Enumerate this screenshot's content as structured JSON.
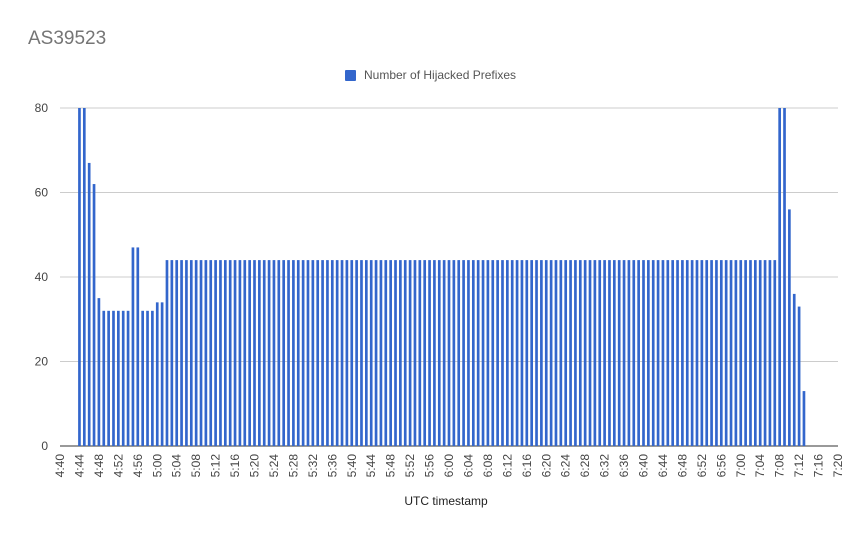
{
  "chart_data": {
    "type": "bar",
    "title": "AS39523",
    "xlabel": "UTC timestamp",
    "ylabel": "",
    "ylim": [
      0,
      80
    ],
    "yticks": [
      0,
      20,
      40,
      60,
      80
    ],
    "xlim": [
      "4:40",
      "7:20"
    ],
    "xticks": [
      "4:40",
      "4:44",
      "4:48",
      "4:52",
      "4:56",
      "5:00",
      "5:04",
      "5:08",
      "5:12",
      "5:16",
      "5:20",
      "5:24",
      "5:28",
      "5:32",
      "5:36",
      "5:40",
      "5:44",
      "5:48",
      "5:52",
      "5:56",
      "6:00",
      "6:04",
      "6:08",
      "6:12",
      "6:16",
      "6:20",
      "6:24",
      "6:28",
      "6:32",
      "6:36",
      "6:40",
      "6:44",
      "6:48",
      "6:52",
      "6:56",
      "7:00",
      "7:04",
      "7:08",
      "7:12",
      "7:16",
      "7:20"
    ],
    "grid": true,
    "legend_position": "top",
    "series": [
      {
        "name": "Number of Hijacked Prefixes",
        "color": "#3366cc",
        "start_time": "4:44",
        "interval_minutes": 1,
        "values": [
          80,
          80,
          67,
          62,
          35,
          32,
          32,
          32,
          32,
          32,
          32,
          47,
          47,
          32,
          32,
          32,
          34,
          34,
          44,
          44,
          44,
          44,
          44,
          44,
          44,
          44,
          44,
          44,
          44,
          44,
          44,
          44,
          44,
          44,
          44,
          44,
          44,
          44,
          44,
          44,
          44,
          44,
          44,
          44,
          44,
          44,
          44,
          44,
          44,
          44,
          44,
          44,
          44,
          44,
          44,
          44,
          44,
          44,
          44,
          44,
          44,
          44,
          44,
          44,
          44,
          44,
          44,
          44,
          44,
          44,
          44,
          44,
          44,
          44,
          44,
          44,
          44,
          44,
          44,
          44,
          44,
          44,
          44,
          44,
          44,
          44,
          44,
          44,
          44,
          44,
          44,
          44,
          44,
          44,
          44,
          44,
          44,
          44,
          44,
          44,
          44,
          44,
          44,
          44,
          44,
          44,
          44,
          44,
          44,
          44,
          44,
          44,
          44,
          44,
          44,
          44,
          44,
          44,
          44,
          44,
          44,
          44,
          44,
          44,
          44,
          44,
          44,
          44,
          44,
          44,
          44,
          44,
          44,
          44,
          44,
          44,
          44,
          44,
          44,
          44,
          44,
          44,
          44,
          44,
          80,
          80,
          56,
          36,
          33,
          13
        ]
      }
    ]
  }
}
